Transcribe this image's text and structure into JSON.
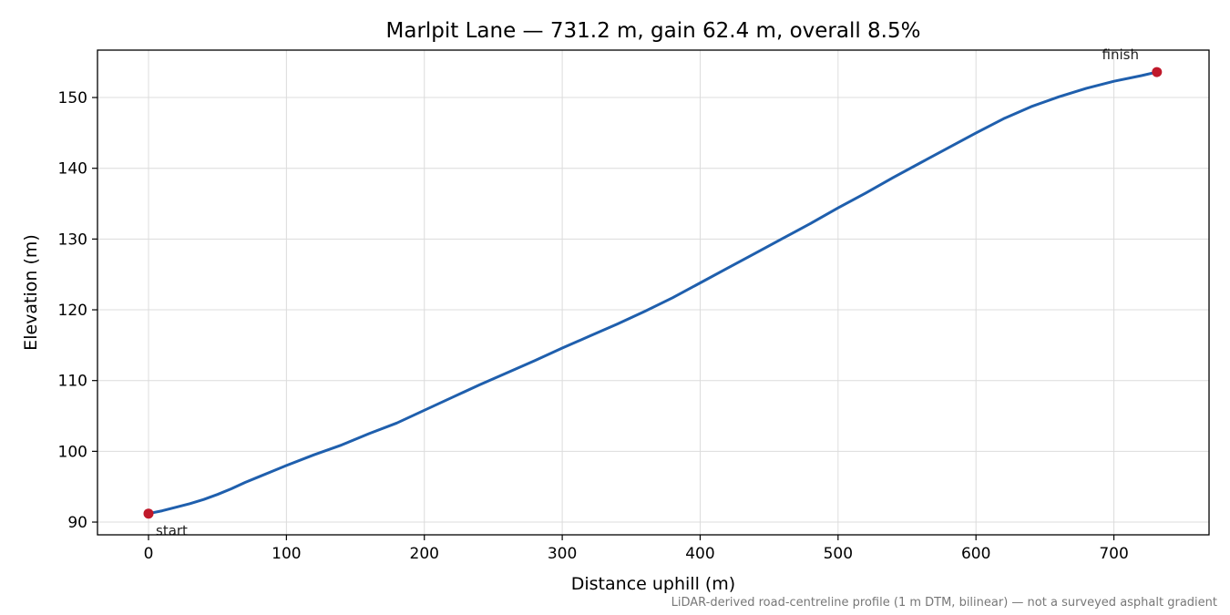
{
  "chart_data": {
    "type": "line",
    "title": "Marlpit Lane — 731.2 m, gain 62.4 m, overall 8.5%",
    "xlabel": "Distance uphill (m)",
    "ylabel": "Elevation (m)",
    "xlim": [
      -37,
      769
    ],
    "ylim": [
      88.2,
      156.7
    ],
    "xticks": [
      0,
      100,
      200,
      300,
      400,
      500,
      600,
      700
    ],
    "yticks": [
      90,
      100,
      110,
      120,
      130,
      140,
      150
    ],
    "grid": true,
    "colors": {
      "line": "#1f5fad",
      "marker": "#c0192b",
      "grid": "#dcdcdc"
    },
    "series": [
      {
        "x": [
          0,
          10,
          20,
          30,
          40,
          50,
          60,
          70,
          80,
          90,
          100,
          120,
          140,
          160,
          180,
          200,
          220,
          240,
          260,
          280,
          300,
          320,
          340,
          360,
          380,
          400,
          420,
          440,
          460,
          480,
          500,
          520,
          540,
          560,
          580,
          600,
          620,
          640,
          660,
          680,
          700,
          720,
          731.2
        ],
        "y": [
          91.2,
          91.6,
          92.1,
          92.6,
          93.2,
          93.9,
          94.7,
          95.6,
          96.4,
          97.2,
          98.0,
          99.5,
          100.9,
          102.5,
          104.0,
          105.8,
          107.6,
          109.4,
          111.1,
          112.8,
          114.6,
          116.3,
          118.0,
          119.8,
          121.7,
          123.8,
          125.9,
          128.0,
          130.1,
          132.2,
          134.4,
          136.5,
          138.7,
          140.8,
          142.9,
          145.0,
          147.0,
          148.7,
          150.1,
          151.3,
          152.3,
          153.1,
          153.6
        ]
      }
    ],
    "annotations": [
      {
        "label": "start",
        "x": 0,
        "y": 91.2
      },
      {
        "label": "finish",
        "x": 731.2,
        "y": 153.6
      }
    ],
    "footnote": "LiDAR-derived road-centreline profile (1 m DTM, bilinear) — not a surveyed asphalt gradient"
  }
}
